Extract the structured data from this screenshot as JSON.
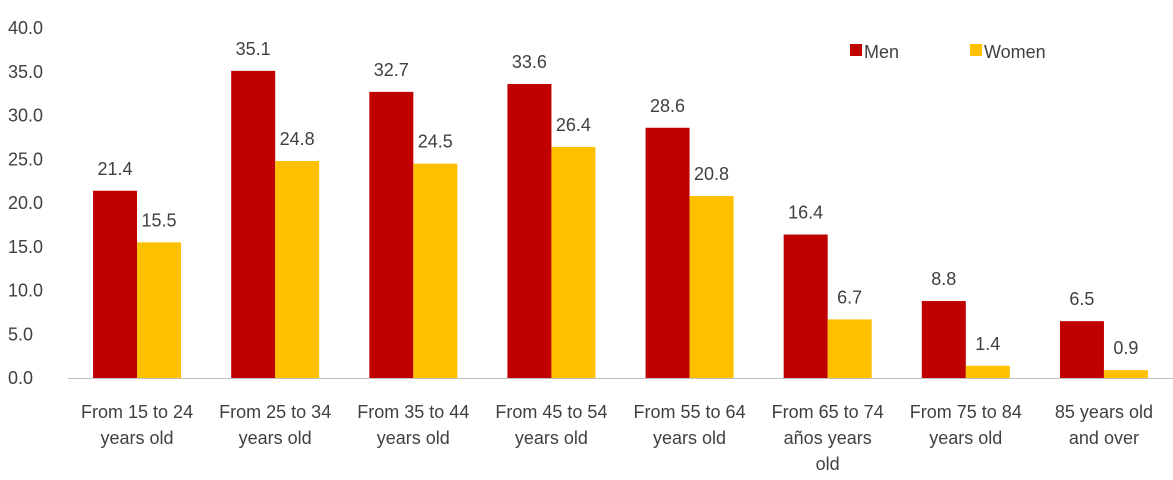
{
  "chart_data": {
    "type": "bar",
    "title": "",
    "xlabel": "",
    "ylabel": "",
    "ylim": [
      0,
      40
    ],
    "yticks": [
      "0.0",
      "5.0",
      "10.0",
      "15.0",
      "20.0",
      "25.0",
      "30.0",
      "35.0",
      "40.0"
    ],
    "grid": false,
    "legend_position": "top-right",
    "categories": [
      [
        "From 15 to 24",
        "years old"
      ],
      [
        "From 25 to 34",
        "years old"
      ],
      [
        "From 35 to 44",
        "years old"
      ],
      [
        "From 45 to 54",
        "years old"
      ],
      [
        "From 55 to 64",
        "years old"
      ],
      [
        "From 65 to 74",
        "años years",
        "old"
      ],
      [
        "From 75 to 84",
        "years old"
      ],
      [
        "85 years old",
        "and over"
      ]
    ],
    "series": [
      {
        "name": "Men",
        "color": "#c00000",
        "values": [
          21.4,
          35.1,
          32.7,
          33.6,
          28.6,
          16.4,
          8.8,
          6.5
        ]
      },
      {
        "name": "Women",
        "color": "#ffc000",
        "values": [
          15.5,
          24.8,
          24.5,
          26.4,
          20.8,
          6.7,
          1.4,
          0.9
        ]
      }
    ]
  }
}
